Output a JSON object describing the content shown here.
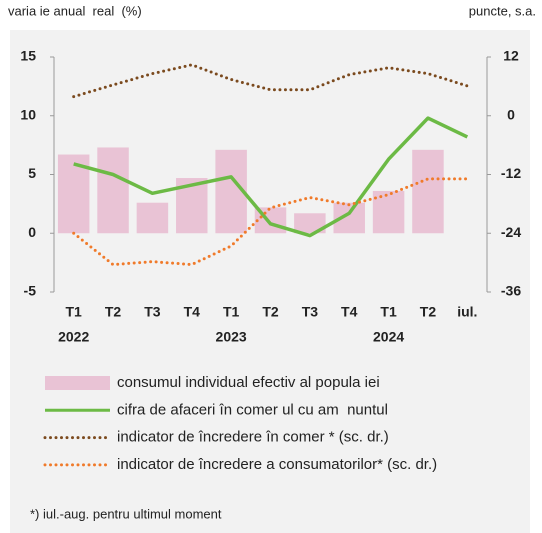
{
  "chart_data": {
    "type": "combo",
    "y_label": "varia ie anual  real  (%)",
    "y2_label": "puncte, s.a.",
    "categories": [
      "T1",
      "T2",
      "T3",
      "T4",
      "T1",
      "T2",
      "T3",
      "T4",
      "T1",
      "T2",
      "iul."
    ],
    "year_labels": [
      "2022",
      null,
      null,
      null,
      "2023",
      null,
      null,
      null,
      "2024",
      null,
      null
    ],
    "ylim": [
      -5,
      15
    ],
    "yticks": [
      -5,
      0,
      5,
      10,
      15
    ],
    "y2lim": [
      -36,
      12
    ],
    "y2ticks": [
      -36,
      -24,
      -12,
      0,
      12
    ],
    "series": [
      {
        "name": "consumul individual efectiv al popula iei",
        "kind": "bar",
        "color": "#e9c3d5",
        "values": [
          6.7,
          7.3,
          2.6,
          4.7,
          7.1,
          2.2,
          1.7,
          2.6,
          3.6,
          7.1,
          null
        ]
      },
      {
        "name": "cifra de afaceri în comer ul cu am  nuntul",
        "kind": "line",
        "color": "#6cba45",
        "values": [
          5.9,
          5.0,
          3.4,
          4.1,
          4.8,
          0.8,
          -0.2,
          1.7,
          6.3,
          9.8,
          8.2
        ]
      },
      {
        "name": "indicator de încredere în comer * (sc. dr.)",
        "kind": "dotted",
        "axis": "y2",
        "color": "#7b4a1e",
        "values": [
          3.9,
          6.3,
          8.6,
          10.4,
          7.4,
          5.3,
          5.3,
          8.4,
          9.8,
          8.6,
          6.1
        ]
      },
      {
        "name": "indicator de încredere a consumatorilor* (sc. dr.)",
        "kind": "dotted",
        "axis": "y2",
        "color": "#f07a2a",
        "values": [
          -24,
          -30.4,
          -29.8,
          -30.4,
          -26.6,
          -18.8,
          -16.7,
          -18.2,
          -16.1,
          -12.9,
          -12.9
        ]
      }
    ],
    "footnote": "*) iul.-aug. pentru ultimul moment"
  }
}
